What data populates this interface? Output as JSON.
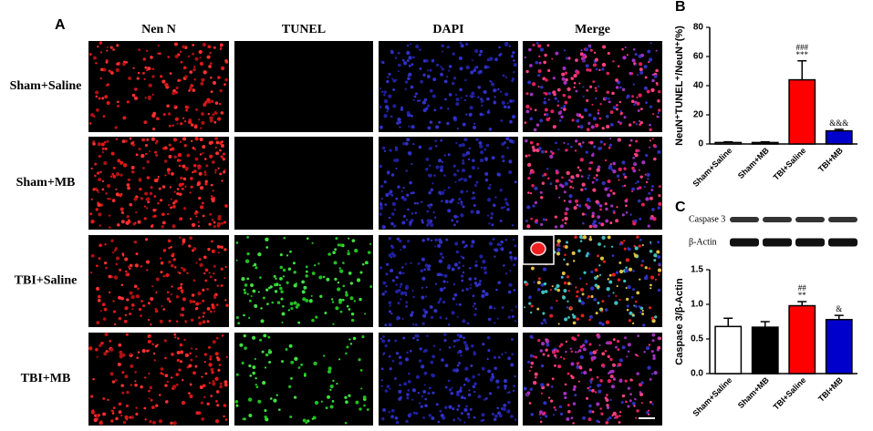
{
  "panel_a": {
    "label": "A",
    "columns": [
      "Nen N",
      "TUNEL",
      "DAPI",
      "Merge"
    ],
    "rows": [
      "Sham+Saline",
      "Sham+MB",
      "TBI+Saline",
      "TBI+MB"
    ]
  },
  "chart_data": [
    {
      "type": "bar",
      "label": "B",
      "ylabel": "NeuN⁺TUNEL⁺/NeuN⁺(%)",
      "categories": [
        "Sham+Saline",
        "Sham+MB",
        "TBI+Saline",
        "TBI+MB"
      ],
      "values": [
        1,
        1,
        44,
        9
      ],
      "errors": [
        0.5,
        0.5,
        13,
        1
      ],
      "colors": [
        "#ffffff",
        "#000000",
        "#ff0000",
        "#0000cc"
      ],
      "annotations": [
        null,
        null,
        [
          "###",
          "***"
        ],
        [
          "&&&"
        ]
      ],
      "ylim": [
        0,
        80
      ],
      "yticks": [
        0,
        20,
        40,
        60,
        80
      ]
    },
    {
      "type": "bar",
      "label": "C",
      "ylabel": "Caspase 3/β-Actin",
      "blot": [
        "Caspase 3",
        "β-Actin"
      ],
      "categories": [
        "Sham+Saline",
        "Sham+MB",
        "TBI+Saline",
        "TBI+MB"
      ],
      "values": [
        0.68,
        0.67,
        0.98,
        0.78
      ],
      "errors": [
        0.12,
        0.08,
        0.06,
        0.06
      ],
      "colors": [
        "#ffffff",
        "#000000",
        "#ff0000",
        "#0000cc"
      ],
      "annotations": [
        null,
        null,
        [
          "##",
          "**"
        ],
        [
          "&"
        ]
      ],
      "ylim": [
        0,
        1.5
      ],
      "yticks": [
        {
          "value": 0,
          "label": "0.0"
        },
        {
          "value": 0.5,
          "label": "0.5"
        },
        {
          "value": 1,
          "label": "1.0"
        },
        {
          "value": 1.5,
          "label": "1.5"
        }
      ]
    }
  ]
}
